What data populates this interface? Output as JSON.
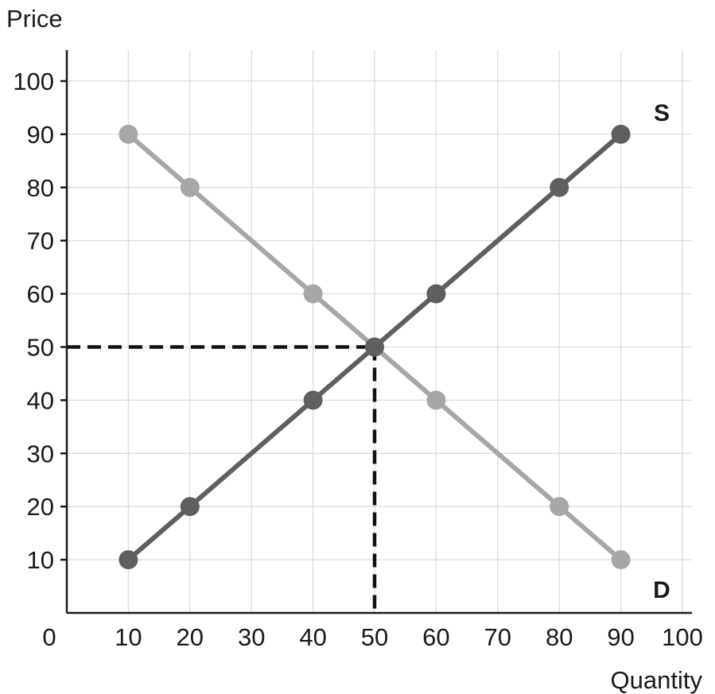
{
  "chart_data": {
    "type": "line",
    "title": "",
    "xlabel": "Quantity",
    "ylabel": "Price",
    "xlim": [
      0,
      100
    ],
    "ylim": [
      0,
      105
    ],
    "x_ticks": [
      0,
      10,
      20,
      30,
      40,
      50,
      60,
      70,
      80,
      90,
      100
    ],
    "y_ticks": [
      10,
      20,
      30,
      40,
      50,
      60,
      70,
      80,
      90,
      100
    ],
    "grid": true,
    "series": [
      {
        "name": "S",
        "color": "#5f5f61",
        "points": [
          [
            10,
            10
          ],
          [
            20,
            20
          ],
          [
            40,
            40
          ],
          [
            50,
            50
          ],
          [
            60,
            60
          ],
          [
            80,
            80
          ],
          [
            90,
            90
          ]
        ]
      },
      {
        "name": "D",
        "color": "#a6a7a9",
        "points": [
          [
            10,
            90
          ],
          [
            20,
            80
          ],
          [
            40,
            60
          ],
          [
            50,
            50
          ],
          [
            60,
            40
          ],
          [
            80,
            20
          ],
          [
            90,
            10
          ]
        ]
      }
    ],
    "equilibrium": {
      "x": 50,
      "y": 50
    },
    "colors": {
      "grid": "#dcdcdc",
      "axis": "#1a1a1a",
      "guide": "#111111"
    }
  }
}
